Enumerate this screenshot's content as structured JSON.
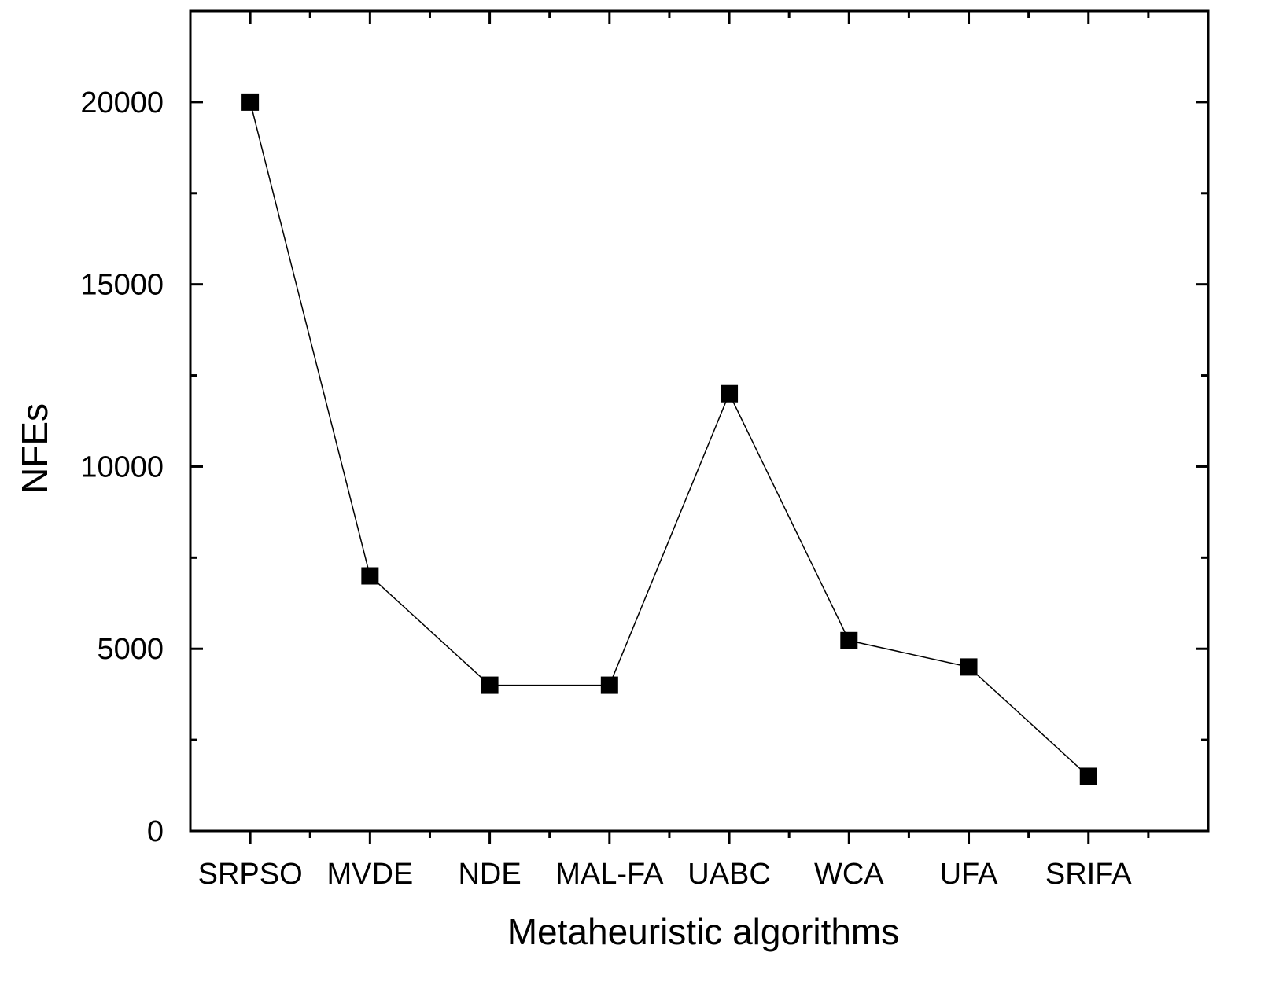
{
  "chart_data": {
    "type": "line",
    "title": "",
    "xlabel": "Metaheuristic algorithms",
    "ylabel": "NFEs",
    "categories": [
      "SRPSO",
      "MVDE",
      "NDE",
      "MAL-FA",
      "UABC",
      "WCA",
      "UFA",
      "SRIFA"
    ],
    "series": [
      {
        "name": "NFEs",
        "values": [
          20000,
          7000,
          4000,
          4000,
          12000,
          5225,
          4500,
          1500
        ],
        "marker": "square",
        "color": "#000000"
      }
    ],
    "ylim": [
      0,
      22500
    ],
    "yticks": [
      0,
      5000,
      10000,
      15000,
      20000
    ],
    "ytick_labels": [
      "0",
      "5000",
      "10000",
      "15000",
      "20000"
    ],
    "y_minor_step": 2500,
    "x_slots": 8.5,
    "grid": false,
    "legend": "none"
  }
}
